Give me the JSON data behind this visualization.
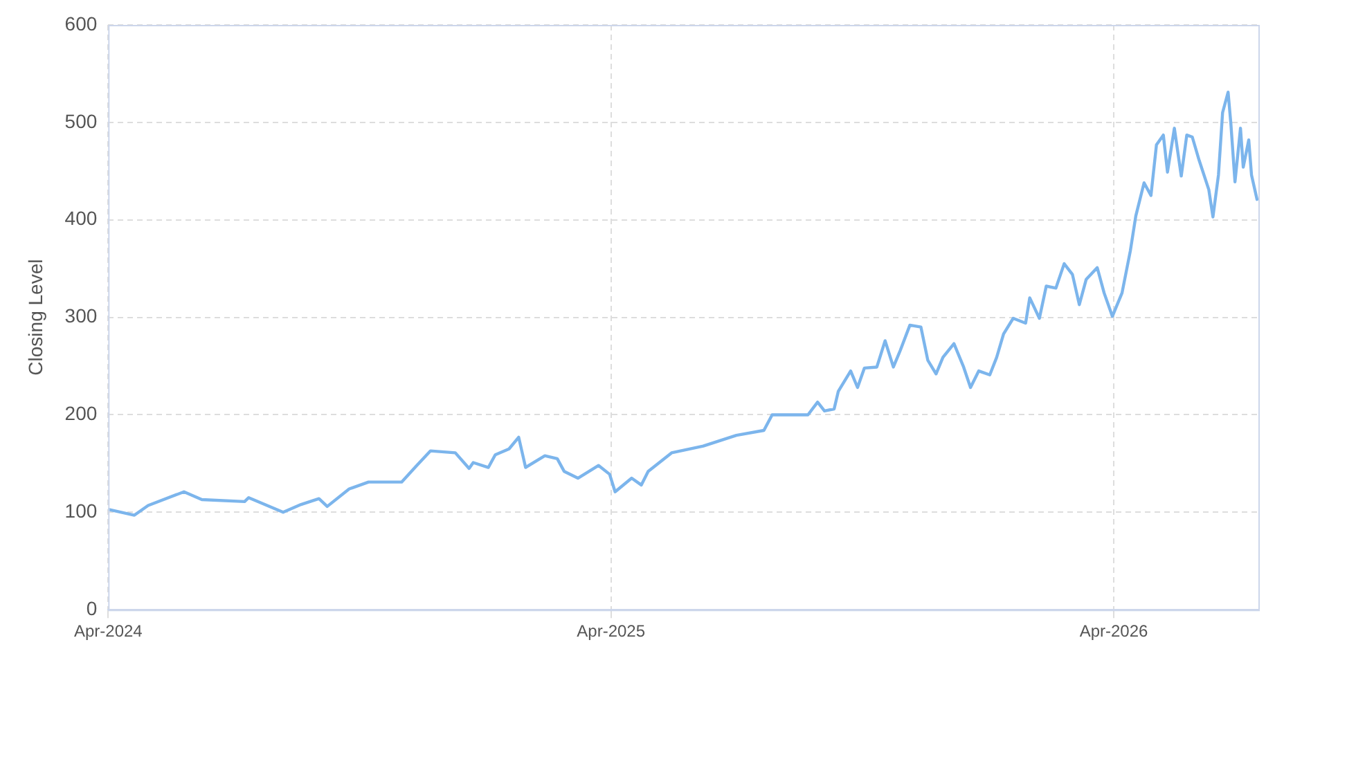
{
  "chart_data": {
    "type": "line",
    "ylabel": "Closing Level",
    "xlim": [
      "2024-04-01",
      "2026-07-15"
    ],
    "xticks": [
      {
        "value": "2024-04-01",
        "label": "Apr-2024"
      },
      {
        "value": "2025-04-01",
        "label": "Apr-2025"
      },
      {
        "value": "2026-04-01",
        "label": "Apr-2026"
      }
    ],
    "ylim": [
      0,
      600
    ],
    "yticks": [
      0,
      100,
      200,
      300,
      400,
      500,
      600
    ],
    "grid": true,
    "legend": false,
    "marker": "none",
    "line_style": "solid",
    "series": [
      {
        "color": "#7cb5ec",
        "x": [
          "2024-04-01",
          "2024-04-20",
          "2024-04-30",
          "2024-05-26",
          "2024-06-08",
          "2024-07-09",
          "2024-07-12",
          "2024-08-06",
          "2024-08-19",
          "2024-09-01",
          "2024-09-07",
          "2024-09-23",
          "2024-10-07",
          "2024-10-31",
          "2024-11-11",
          "2024-11-21",
          "2024-12-09",
          "2024-12-19",
          "2024-12-22",
          "2025-01-02",
          "2025-01-07",
          "2025-01-17",
          "2025-01-24",
          "2025-01-29",
          "2025-02-12",
          "2025-02-21",
          "2025-02-26",
          "2025-03-08",
          "2025-03-23",
          "2025-03-31",
          "2025-04-04",
          "2025-04-16",
          "2025-04-23",
          "2025-04-28",
          "2025-05-15",
          "2025-06-07",
          "2025-07-01",
          "2025-07-21",
          "2025-07-27",
          "2025-08-08",
          "2025-08-22",
          "2025-08-29",
          "2025-09-03",
          "2025-09-10",
          "2025-09-13",
          "2025-09-22",
          "2025-09-27",
          "2025-10-02",
          "2025-10-11",
          "2025-10-17",
          "2025-10-23",
          "2025-10-28",
          "2025-11-04",
          "2025-11-12",
          "2025-11-17",
          "2025-11-23",
          "2025-11-28",
          "2025-12-06",
          "2025-12-13",
          "2025-12-18",
          "2025-12-24",
          "2026-01-01",
          "2026-01-06",
          "2026-01-11",
          "2026-01-18",
          "2026-01-27",
          "2026-01-30",
          "2026-02-06",
          "2026-02-11",
          "2026-02-18",
          "2026-02-24",
          "2026-03-02",
          "2026-03-07",
          "2026-03-12",
          "2026-03-20",
          "2026-03-25",
          "2026-03-31",
          "2026-04-07",
          "2026-04-13",
          "2026-04-17",
          "2026-04-23",
          "2026-04-28",
          "2026-05-02",
          "2026-05-07",
          "2026-05-10",
          "2026-05-15",
          "2026-05-20",
          "2026-05-24",
          "2026-05-28",
          "2026-06-02",
          "2026-06-09",
          "2026-06-12",
          "2026-06-16",
          "2026-06-19",
          "2026-06-23",
          "2026-06-25",
          "2026-06-28",
          "2026-07-02",
          "2026-07-04",
          "2026-07-08",
          "2026-07-10",
          "2026-07-14"
        ],
        "values": [
          103,
          97,
          107,
          121,
          113,
          111,
          115,
          100,
          108,
          114,
          106,
          124,
          131,
          131,
          148,
          163,
          161,
          145,
          151,
          146,
          159,
          165,
          177,
          146,
          158,
          155,
          142,
          135,
          148,
          139,
          121,
          135,
          128,
          142,
          161,
          168,
          179,
          184,
          200,
          200,
          200,
          213,
          204,
          206,
          224,
          245,
          228,
          248,
          249,
          276,
          249,
          266,
          292,
          290,
          256,
          242,
          259,
          273,
          249,
          228,
          245,
          241,
          259,
          283,
          299,
          294,
          320,
          299,
          332,
          330,
          355,
          344,
          313,
          339,
          351,
          325,
          301,
          325,
          368,
          404,
          438,
          425,
          477,
          487,
          449,
          494,
          445,
          487,
          485,
          461,
          431,
          403,
          446,
          510,
          531,
          499,
          439,
          494,
          454,
          482,
          446,
          421
        ]
      }
    ]
  }
}
